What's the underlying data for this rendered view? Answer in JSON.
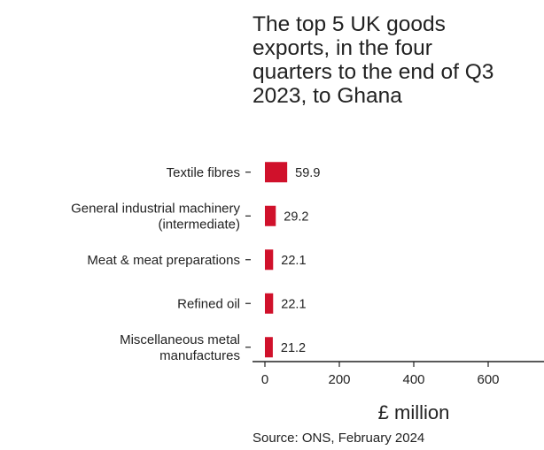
{
  "chart_data": {
    "type": "bar",
    "orientation": "horizontal",
    "title_lines": [
      "The top 5 UK goods",
      "exports, in the four",
      "quarters to the end of Q3",
      "2023, to Ghana"
    ],
    "categories": [
      [
        "Textile fibres"
      ],
      [
        "General industrial machinery",
        "(intermediate)"
      ],
      [
        "Meat & meat preparations"
      ],
      [
        "Refined oil"
      ],
      [
        "Miscellaneous metal",
        "manufactures"
      ]
    ],
    "values": [
      59.9,
      29.2,
      22.1,
      22.1,
      21.2
    ],
    "value_labels": [
      "59.9",
      "29.2",
      "22.1",
      "22.1",
      "21.2"
    ],
    "xticks": [
      0,
      200,
      400,
      600
    ],
    "xtick_labels": [
      "0",
      "200",
      "400",
      "600"
    ],
    "xlabel": "£ million",
    "ylabel": "",
    "grid": false,
    "colors": {
      "bar": "#d0112b",
      "text": "#222222",
      "axis": "#222222"
    }
  },
  "source": "Source: ONS, February 2024"
}
